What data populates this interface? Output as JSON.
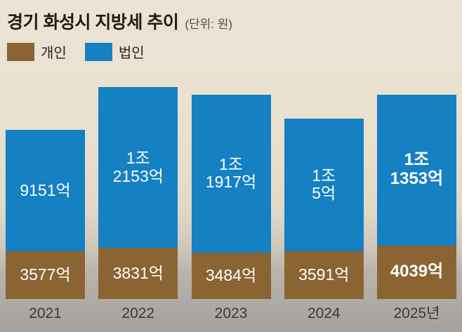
{
  "title": "경기 화성시 지방세 추이",
  "unit_label": "(단위: 원)",
  "legend": [
    {
      "label": "개인",
      "color": "#8a6432"
    },
    {
      "label": "법인",
      "color": "#1580c2"
    }
  ],
  "chart_data": {
    "type": "bar",
    "stacked": true,
    "title": "경기 화성시 지방세 추이",
    "unit": "원 (값은 억 원 단위)",
    "categories": [
      "2021",
      "2022",
      "2023",
      "2024",
      "2025년"
    ],
    "series": [
      {
        "name": "개인",
        "color": "#8a6432",
        "values": [
          3577,
          3831,
          3484,
          3591,
          4039
        ],
        "labels": [
          "3577억",
          "3831억",
          "3484억",
          "3591억",
          "4039억"
        ]
      },
      {
        "name": "법인",
        "color": "#1580c2",
        "values": [
          9151,
          12153,
          11917,
          10005,
          11353
        ],
        "labels": [
          "9151억",
          "1조\n2153억",
          "1조\n1917억",
          "1조\n5억",
          "1조\n1353억"
        ]
      }
    ],
    "totals": [
      12728,
      15984,
      15401,
      13596,
      15392
    ],
    "emphasized_category_index": 4,
    "legend_position": "top-left",
    "grid": false,
    "ylim": [
      0,
      15984
    ]
  }
}
